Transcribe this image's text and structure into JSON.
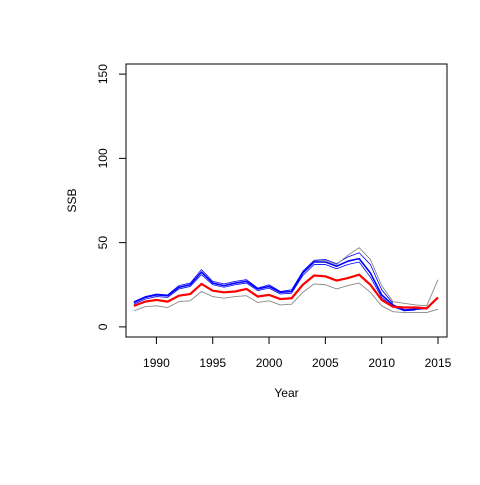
{
  "chart_data": {
    "type": "line",
    "title": "",
    "xlabel": "Year",
    "ylabel": "SSB",
    "xlim": [
      1987.3,
      2015.8
    ],
    "ylim": [
      -6,
      156
    ],
    "x_ticks": [
      1990,
      1995,
      2000,
      2005,
      2010,
      2015
    ],
    "y_ticks": [
      0,
      50,
      100,
      150
    ],
    "grid": false,
    "x": [
      1988,
      1989,
      1990,
      1991,
      1992,
      1993,
      1994,
      1995,
      1996,
      1997,
      1998,
      1999,
      2000,
      2001,
      2002,
      2003,
      2004,
      2005,
      2006,
      2007,
      2008,
      2009,
      2010,
      2011,
      2012,
      2013,
      2014,
      2015
    ],
    "series": [
      {
        "color": "#ff0000",
        "width": 2.2,
        "values": [
          12.5,
          15.0,
          16.0,
          15.0,
          18.5,
          19.5,
          25.5,
          21.5,
          20.5,
          21.0,
          22.5,
          18.0,
          19.0,
          16.5,
          17.0,
          25.0,
          30.5,
          30.0,
          27.5,
          29.0,
          31.0,
          25.0,
          16.0,
          12.0,
          11.5,
          11.5,
          11.0,
          17.5
        ]
      },
      {
        "color": "#0000ff",
        "width": 1.6,
        "values": [
          14.5,
          17.5,
          19.0,
          18.5,
          23.5,
          25.0,
          32.5,
          26.0,
          24.5,
          26.0,
          27.0,
          22.5,
          24.0,
          20.5,
          21.0,
          32.0,
          38.5,
          38.5,
          36.0,
          39.0,
          40.5,
          32.0,
          19.0,
          13.0,
          10.0,
          10.5,
          11.0,
          null
        ]
      },
      {
        "color": "#0000ff",
        "width": 0.8,
        "values": [
          15.0,
          18.0,
          19.5,
          19.0,
          24.5,
          26.0,
          34.0,
          27.0,
          25.5,
          27.0,
          28.0,
          23.0,
          25.0,
          21.0,
          22.0,
          33.0,
          39.5,
          40.0,
          37.5,
          41.5,
          44.0,
          37.0,
          22.0,
          14.0,
          null,
          null,
          null,
          null
        ]
      },
      {
        "color": "#0000ff",
        "width": 0.8,
        "values": [
          13.5,
          16.5,
          18.0,
          17.5,
          22.5,
          24.0,
          31.0,
          25.0,
          23.5,
          25.0,
          26.0,
          21.5,
          23.0,
          19.5,
          20.0,
          30.5,
          37.0,
          37.0,
          34.5,
          37.0,
          38.5,
          29.5,
          17.5,
          12.0,
          9.5,
          10.0,
          null,
          null
        ]
      },
      {
        "color": "#888888",
        "width": 0.9,
        "values": [
          14.5,
          17.5,
          19.0,
          18.5,
          23.5,
          25.0,
          32.5,
          26.0,
          24.5,
          26.0,
          27.0,
          22.5,
          24.0,
          20.5,
          21.0,
          32.0,
          39.0,
          39.5,
          37.0,
          42.5,
          47.0,
          40.0,
          24.5,
          15.0,
          14.0,
          13.0,
          12.5,
          28.0
        ]
      },
      {
        "color": "#888888",
        "width": 0.9,
        "values": [
          9.5,
          12.0,
          12.5,
          11.5,
          15.0,
          15.5,
          21.0,
          18.0,
          17.0,
          18.0,
          18.5,
          14.5,
          15.5,
          13.0,
          13.5,
          20.5,
          25.5,
          25.0,
          22.5,
          24.5,
          26.0,
          20.5,
          12.5,
          9.0,
          8.5,
          8.5,
          8.5,
          10.5
        ]
      }
    ]
  }
}
